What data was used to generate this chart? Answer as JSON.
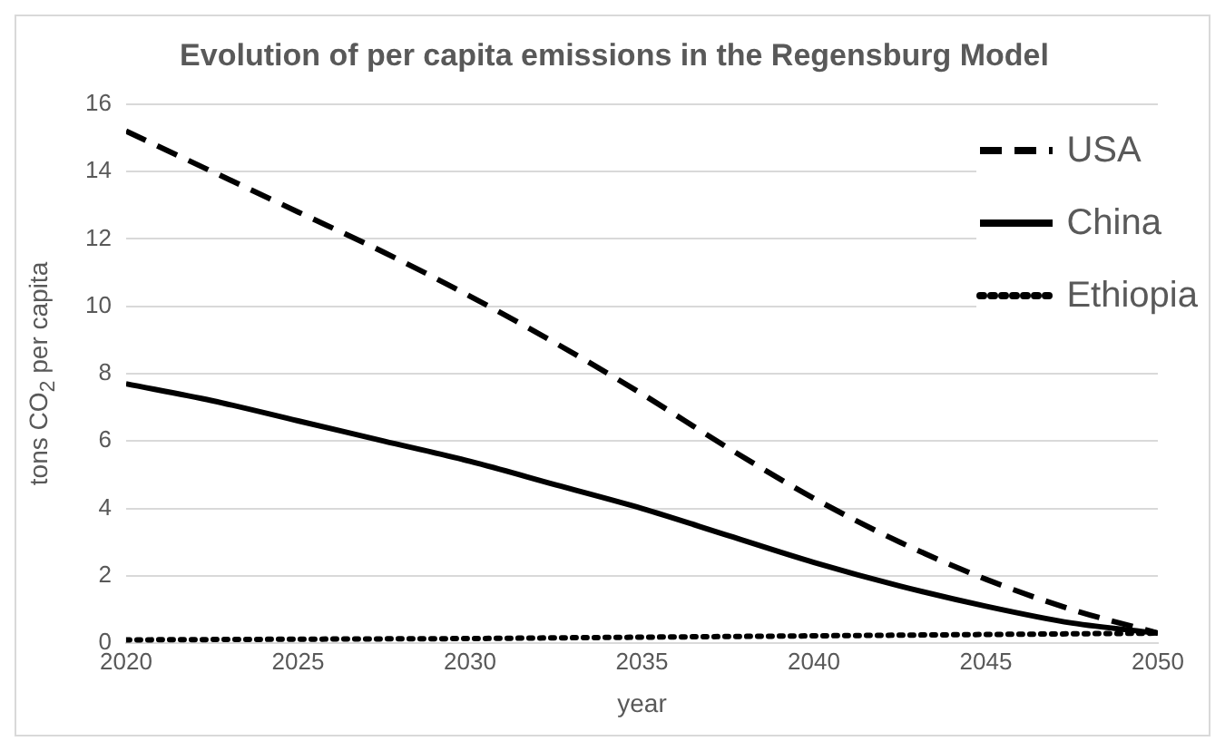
{
  "chart_data": {
    "type": "line",
    "title": "Evolution of per capita emissions in the Regensburg Model",
    "xlabel": "year",
    "ylabel": "tons CO$_{2}$ per capita",
    "x": [
      2020,
      2022.5,
      2025,
      2027.5,
      2030,
      2032.5,
      2035,
      2037.5,
      2040,
      2042.5,
      2045,
      2047.5,
      2050
    ],
    "series": [
      {
        "name": "USA",
        "color": "#000000",
        "line_style": "dashed",
        "values": [
          15.2,
          14.0,
          12.8,
          11.6,
          10.3,
          8.9,
          7.4,
          5.8,
          4.3,
          3.0,
          1.9,
          1.0,
          0.3
        ]
      },
      {
        "name": "China",
        "color": "#000000",
        "line_style": "solid",
        "values": [
          7.7,
          7.2,
          6.6,
          6.0,
          5.4,
          4.7,
          4.0,
          3.2,
          2.4,
          1.7,
          1.1,
          0.6,
          0.3
        ]
      },
      {
        "name": "Ethiopia",
        "color": "#000000",
        "line_style": "dotted",
        "values": [
          0.1,
          0.11,
          0.12,
          0.13,
          0.14,
          0.16,
          0.18,
          0.2,
          0.22,
          0.24,
          0.26,
          0.28,
          0.3
        ]
      }
    ],
    "xlim": [
      2020,
      2050
    ],
    "xticks": [
      2020,
      2025,
      2030,
      2035,
      2040,
      2045,
      2050
    ],
    "ylim": [
      0,
      16
    ],
    "yticks": [
      0,
      2,
      4,
      6,
      8,
      10,
      12,
      14,
      16
    ],
    "grid": "y",
    "legend": "top right",
    "marker": "none"
  }
}
